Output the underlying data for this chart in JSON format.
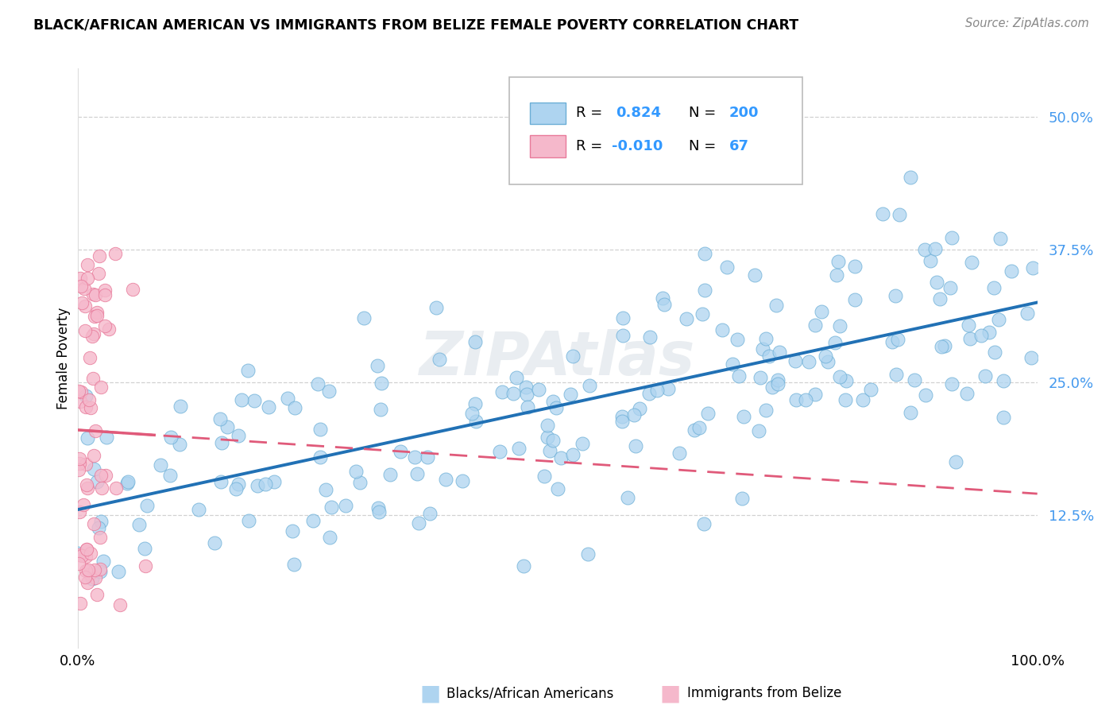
{
  "title": "BLACK/AFRICAN AMERICAN VS IMMIGRANTS FROM BELIZE FEMALE POVERTY CORRELATION CHART",
  "source": "Source: ZipAtlas.com",
  "ylabel": "Female Poverty",
  "yticks": [
    0.125,
    0.25,
    0.375,
    0.5
  ],
  "ytick_labels": [
    "12.5%",
    "25.0%",
    "37.5%",
    "50.0%"
  ],
  "watermark": "ZIPAtlas",
  "blue_scatter_color": "#aed4f0",
  "pink_scatter_color": "#f5b8cb",
  "blue_edge_color": "#6baed6",
  "pink_edge_color": "#e87a9a",
  "blue_line_color": "#2171b5",
  "pink_line_color": "#e05a7a",
  "blue_R": 0.824,
  "blue_N": 200,
  "pink_R": -0.01,
  "pink_N": 67,
  "blue_intercept": 0.13,
  "blue_slope": 0.195,
  "pink_intercept": 0.205,
  "pink_slope": -0.06,
  "x_min": 0.0,
  "x_max": 1.0,
  "y_min": 0.0,
  "y_max": 0.545,
  "background_color": "#ffffff",
  "grid_color": "#cccccc",
  "tick_color": "#4499ee",
  "legend_R_color": "#000000",
  "legend_val_color": "#3399ff",
  "bottom_legend_blue_label": "Blacks/African Americans",
  "bottom_legend_pink_label": "Immigrants from Belize"
}
